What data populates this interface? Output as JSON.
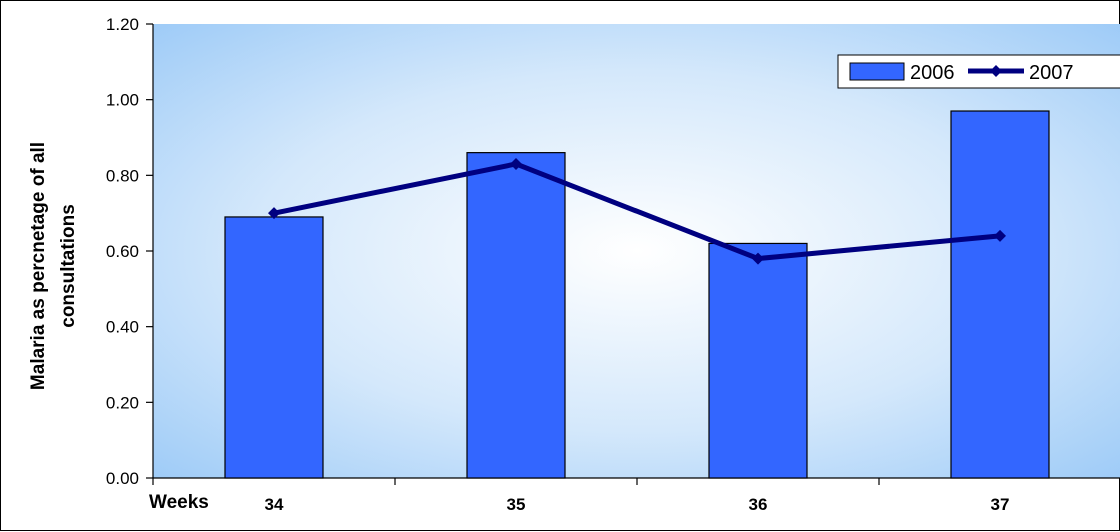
{
  "chart_data": {
    "type": "bar",
    "title": "",
    "xlabel": "Weeks",
    "ylabel_lines": [
      "Malaria as percnetage of all",
      "consultations"
    ],
    "categories": [
      "34",
      "35",
      "36",
      "37"
    ],
    "ylim": [
      0,
      1.2
    ],
    "yticks": [
      "0.00",
      "0.20",
      "0.40",
      "0.60",
      "0.80",
      "1.00",
      "1.20"
    ],
    "legend_position": "top-right",
    "series": [
      {
        "name": "2006",
        "kind": "bar",
        "color": "#3366FF",
        "values": [
          0.69,
          0.86,
          0.62,
          0.97
        ]
      },
      {
        "name": "2007",
        "kind": "line",
        "color": "#000080",
        "values": [
          0.7,
          0.83,
          0.58,
          0.64
        ]
      }
    ]
  }
}
